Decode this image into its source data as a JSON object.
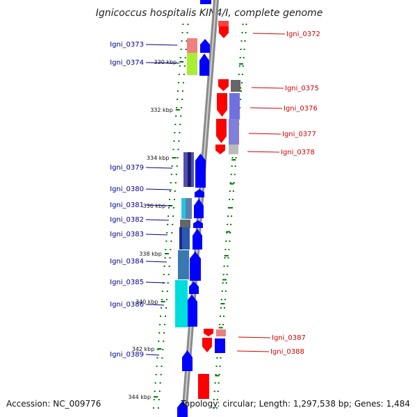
{
  "title": "Ignicoccus hospitalis KIN4/I, complete genome",
  "footer": {
    "accession": "Accession: NC_009776",
    "summary": "Topology: circular; Length: 1,297,538 bp; Genes: 1,484"
  },
  "colors": {
    "forward_gene": "#0000ff",
    "reverse_gene": "#ff0000",
    "forward_label": "#00008b",
    "reverse_label": "#d40000",
    "backbone": "#8a8a8a",
    "ticks": "#007a00"
  },
  "ticks": [
    "330 kbp",
    "332 kbp",
    "334 kbp",
    "336 kbp",
    "338 kbp",
    "340 kbp",
    "342 kbp",
    "344 kbp"
  ],
  "genes_forward": [
    "Igni_0373",
    "Igni_0374",
    "Igni_0379",
    "Igni_0380",
    "Igni_0381",
    "Igni_0382",
    "Igni_0383",
    "Igni_0384",
    "Igni_0385",
    "Igni_0386",
    "Igni_0389"
  ],
  "genes_reverse": [
    "Igni_0372",
    "Igni_0375",
    "Igni_0376",
    "Igni_0377",
    "Igni_0378",
    "Igni_0387",
    "Igni_0388"
  ]
}
